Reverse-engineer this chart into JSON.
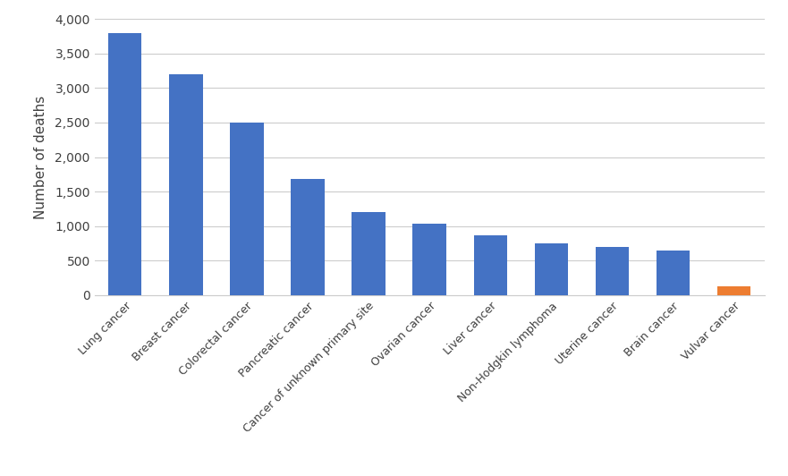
{
  "categories": [
    "Lung cancer",
    "Breast cancer",
    "Colorectal cancer",
    "Pancreatic cancer",
    "Cancer of unknown primary site",
    "Ovarian cancer",
    "Liver cancer",
    "Non-Hodgkin lymphoma",
    "Uterine cancer",
    "Brain cancer",
    "Vulvar cancer"
  ],
  "values": [
    3800,
    3200,
    2500,
    1680,
    1200,
    1040,
    860,
    750,
    700,
    640,
    130
  ],
  "bar_colors": [
    "#4472C4",
    "#4472C4",
    "#4472C4",
    "#4472C4",
    "#4472C4",
    "#4472C4",
    "#4472C4",
    "#4472C4",
    "#4472C4",
    "#4472C4",
    "#ED7D31"
  ],
  "ylabel": "Number of deaths",
  "ylim": [
    0,
    4000
  ],
  "yticks": [
    0,
    500,
    1000,
    1500,
    2000,
    2500,
    3000,
    3500,
    4000
  ],
  "background_color": "#FFFFFF",
  "grid_color": "#CCCCCC",
  "ylabel_fontsize": 11,
  "tick_fontsize": 10,
  "xtick_fontsize": 9,
  "bar_width": 0.55
}
